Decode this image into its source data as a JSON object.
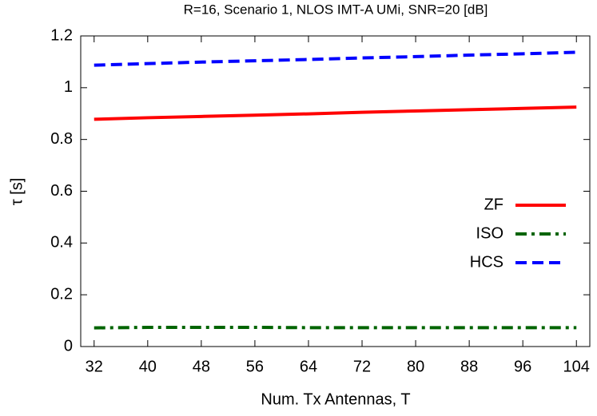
{
  "chart_data": {
    "type": "line",
    "title": "R=16, Scenario 1, NLOS IMT-A UMi, SNR=20 [dB]",
    "x_label": "Num. Tx Antennas, T",
    "y_label": "τ [s]",
    "x": [
      32,
      40,
      48,
      56,
      64,
      72,
      80,
      88,
      96,
      104
    ],
    "series": [
      {
        "name": "ZF",
        "color": "#ff0000",
        "dash": "solid",
        "values": [
          0.878,
          0.884,
          0.889,
          0.894,
          0.899,
          0.905,
          0.91,
          0.915,
          0.92,
          0.925
        ]
      },
      {
        "name": "ISO",
        "color": "#006400",
        "dash": "dashdot",
        "values": [
          0.072,
          0.074,
          0.074,
          0.074,
          0.073,
          0.073,
          0.073,
          0.073,
          0.073,
          0.073
        ]
      },
      {
        "name": "HCS",
        "color": "#0000ff",
        "dash": "dash",
        "values": [
          1.087,
          1.093,
          1.099,
          1.104,
          1.109,
          1.115,
          1.12,
          1.126,
          1.131,
          1.137
        ]
      }
    ],
    "xlim": [
      30,
      106
    ],
    "xticks": [
      32,
      40,
      48,
      56,
      64,
      72,
      80,
      88,
      96,
      104
    ],
    "ylim": [
      0,
      1.2
    ],
    "yticks": [
      0,
      0.2,
      0.4,
      0.6,
      0.8,
      1,
      1.2
    ],
    "legend": "right"
  }
}
